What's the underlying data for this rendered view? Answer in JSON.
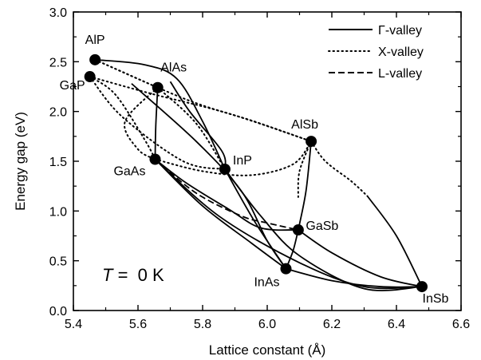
{
  "chart_data": {
    "type": "scatter",
    "xlabel": "Lattice constant (Å)",
    "ylabel": "Energy gap (eV)",
    "xlim": [
      5.4,
      6.6
    ],
    "ylim": [
      0.0,
      3.0
    ],
    "xticks": [
      "5.4",
      "5.6",
      "5.8",
      "6.0",
      "6.2",
      "6.4",
      "6.6"
    ],
    "yticks": [
      "0.0",
      "0.5",
      "1.0",
      "1.5",
      "2.0",
      "2.5",
      "3.0"
    ],
    "grid": false,
    "legend_position": "top-right",
    "legend": [
      {
        "label": "Γ-valley",
        "style": "solid"
      },
      {
        "label": "X-valley",
        "style": "dotted"
      },
      {
        "label": "L-valley",
        "style": "dashed"
      }
    ],
    "annotation": {
      "var": "T",
      "rest": " =  0 K"
    },
    "points": [
      {
        "name": "AlP",
        "x": 5.467,
        "y": 2.52
      },
      {
        "name": "GaP",
        "x": 5.451,
        "y": 2.35
      },
      {
        "name": "AlAs",
        "x": 5.661,
        "y": 2.24
      },
      {
        "name": "AlSb",
        "x": 6.136,
        "y": 1.7
      },
      {
        "name": "GaAs",
        "x": 5.653,
        "y": 1.52
      },
      {
        "name": "InP",
        "x": 5.869,
        "y": 1.42
      },
      {
        "name": "GaSb",
        "x": 6.096,
        "y": 0.81
      },
      {
        "name": "InAs",
        "x": 6.058,
        "y": 0.42
      },
      {
        "name": "InSb",
        "x": 6.479,
        "y": 0.24
      }
    ],
    "curves": [
      {
        "valley": "X-valley",
        "style": "dotted",
        "points": [
          [
            5.467,
            2.52
          ],
          [
            5.661,
            2.24
          ]
        ]
      },
      {
        "valley": "X-valley",
        "style": "dotted",
        "points": [
          [
            5.467,
            2.52
          ],
          [
            5.75,
            2.12
          ],
          [
            5.96,
            1.9
          ],
          [
            6.136,
            1.7
          ]
        ]
      },
      {
        "valley": "X-valley",
        "style": "dotted",
        "points": [
          [
            5.451,
            2.35
          ],
          [
            5.64,
            2.18
          ],
          [
            5.88,
            1.98
          ],
          [
            6.136,
            1.7
          ]
        ]
      },
      {
        "valley": "X-valley",
        "style": "dotted",
        "points": [
          [
            5.451,
            2.35
          ],
          [
            5.53,
            2.17
          ],
          [
            5.62,
            1.72
          ],
          [
            5.653,
            1.52
          ]
        ]
      },
      {
        "valley": "X-valley",
        "style": "dotted",
        "points": [
          [
            5.661,
            2.24
          ],
          [
            5.78,
            1.88
          ],
          [
            5.869,
            1.42
          ]
        ]
      },
      {
        "valley": "X-valley",
        "style": "dotted",
        "points": [
          [
            5.661,
            2.24
          ],
          [
            5.56,
            1.9
          ],
          [
            5.6,
            1.62
          ],
          [
            5.653,
            1.52
          ]
        ]
      },
      {
        "valley": "X-valley",
        "style": "dotted",
        "points": [
          [
            5.653,
            1.52
          ],
          [
            5.8,
            1.4
          ],
          [
            5.95,
            1.36
          ],
          [
            6.08,
            1.47
          ],
          [
            6.136,
            1.7
          ]
        ]
      },
      {
        "valley": "X-valley",
        "style": "dotted",
        "points": [
          [
            6.136,
            1.7
          ],
          [
            6.18,
            1.5
          ],
          [
            6.26,
            1.3
          ],
          [
            6.31,
            1.15
          ]
        ]
      },
      {
        "valley": "X-valley",
        "style": "dotted",
        "points": [
          [
            6.136,
            1.7
          ],
          [
            6.1,
            1.4
          ],
          [
            6.096,
            1.14
          ]
        ]
      },
      {
        "valley": "X-valley",
        "style": "dotted",
        "points": [
          [
            5.451,
            2.35
          ],
          [
            5.55,
            1.95
          ],
          [
            5.74,
            1.5
          ],
          [
            5.869,
            1.42
          ]
        ]
      },
      {
        "valley": "Γ-valley",
        "style": "solid",
        "points": [
          [
            5.467,
            2.52
          ],
          [
            5.62,
            2.47
          ],
          [
            5.72,
            2.33
          ],
          [
            5.8,
            1.9
          ],
          [
            5.869,
            1.42
          ]
        ]
      },
      {
        "valley": "Γ-valley",
        "style": "solid",
        "points": [
          [
            5.58,
            2.28
          ],
          [
            5.78,
            1.7
          ],
          [
            5.92,
            1.2
          ],
          [
            6.0,
            0.7
          ],
          [
            6.058,
            0.42
          ]
        ]
      },
      {
        "valley": "Γ-valley",
        "style": "solid",
        "points": [
          [
            5.661,
            2.24
          ],
          [
            5.655,
            1.85
          ],
          [
            5.653,
            1.52
          ]
        ]
      },
      {
        "valley": "Γ-valley",
        "style": "solid",
        "points": [
          [
            5.653,
            1.52
          ],
          [
            5.75,
            1.28
          ],
          [
            5.88,
            1.02
          ],
          [
            5.98,
            0.83
          ],
          [
            6.096,
            0.81
          ]
        ]
      },
      {
        "valley": "Γ-valley",
        "style": "solid",
        "points": [
          [
            5.653,
            1.52
          ],
          [
            5.8,
            1.05
          ],
          [
            5.95,
            0.68
          ],
          [
            6.058,
            0.42
          ]
        ]
      },
      {
        "valley": "Γ-valley",
        "style": "solid",
        "points": [
          [
            5.653,
            1.52
          ],
          [
            5.85,
            0.95
          ],
          [
            6.1,
            0.48
          ],
          [
            6.3,
            0.24
          ],
          [
            6.479,
            0.24
          ]
        ]
      },
      {
        "valley": "Γ-valley",
        "style": "solid",
        "points": [
          [
            5.869,
            1.42
          ],
          [
            5.96,
            0.9
          ],
          [
            6.058,
            0.42
          ]
        ]
      },
      {
        "valley": "Γ-valley",
        "style": "solid",
        "points": [
          [
            5.869,
            1.42
          ],
          [
            5.98,
            0.95
          ],
          [
            6.1,
            0.55
          ],
          [
            6.3,
            0.22
          ],
          [
            6.479,
            0.24
          ]
        ]
      },
      {
        "valley": "Γ-valley",
        "style": "solid",
        "points": [
          [
            6.058,
            0.42
          ],
          [
            6.2,
            0.3
          ],
          [
            6.35,
            0.24
          ],
          [
            6.479,
            0.24
          ]
        ]
      },
      {
        "valley": "Γ-valley",
        "style": "solid",
        "points": [
          [
            6.096,
            0.81
          ],
          [
            6.12,
            1.2
          ],
          [
            6.136,
            1.7
          ]
        ]
      },
      {
        "valley": "Γ-valley",
        "style": "solid",
        "points": [
          [
            6.096,
            0.81
          ],
          [
            6.2,
            0.58
          ],
          [
            6.35,
            0.34
          ],
          [
            6.479,
            0.24
          ]
        ]
      },
      {
        "valley": "Γ-valley",
        "style": "solid",
        "points": [
          [
            6.31,
            1.15
          ],
          [
            6.4,
            0.75
          ],
          [
            6.479,
            0.24
          ]
        ]
      },
      {
        "valley": "Γ-valley",
        "style": "solid",
        "points": [
          [
            5.7,
            2.3
          ],
          [
            5.76,
            2.0
          ],
          [
            5.86,
            1.6
          ],
          [
            5.869,
            1.42
          ]
        ]
      },
      {
        "valley": "Γ-valley",
        "style": "solid",
        "points": [
          [
            6.096,
            0.81
          ],
          [
            6.08,
            0.6
          ],
          [
            6.058,
            0.42
          ]
        ]
      },
      {
        "valley": "L-valley",
        "style": "dashed",
        "points": [
          [
            5.653,
            1.52
          ],
          [
            5.78,
            1.18
          ],
          [
            5.92,
            0.95
          ],
          [
            6.0,
            0.88
          ],
          [
            6.096,
            0.81
          ]
        ]
      }
    ]
  }
}
